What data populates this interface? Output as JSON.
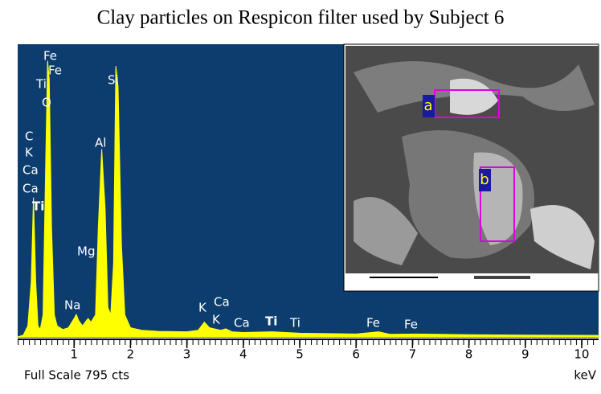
{
  "chart_data": {
    "type": "area",
    "title": "Clay particles on Respicon filter used by Subject 6",
    "x_label": "keV",
    "full_scale_label": "Full Scale 795 cts",
    "color": "#ffff00",
    "background": "#0c3d6e",
    "xlim": [
      0,
      10.3
    ],
    "ylim": [
      0,
      795
    ],
    "xticks": [
      1,
      2,
      3,
      4,
      5,
      6,
      7,
      8,
      9,
      10
    ],
    "x": [
      0.0,
      0.1,
      0.18,
      0.24,
      0.28,
      0.32,
      0.36,
      0.4,
      0.45,
      0.5,
      0.53,
      0.56,
      0.6,
      0.65,
      0.7,
      0.8,
      0.9,
      1.0,
      1.04,
      1.08,
      1.15,
      1.22,
      1.25,
      1.3,
      1.38,
      1.43,
      1.49,
      1.55,
      1.6,
      1.65,
      1.7,
      1.74,
      1.78,
      1.84,
      1.9,
      2.0,
      2.2,
      2.5,
      3.0,
      3.2,
      3.31,
      3.4,
      3.6,
      3.69,
      3.8,
      4.0,
      4.51,
      5.0,
      6.0,
      6.4,
      6.6,
      7.06,
      8.0,
      9.0,
      10.3
    ],
    "values": [
      0,
      5,
      30,
      150,
      379,
      150,
      30,
      20,
      60,
      500,
      750,
      700,
      300,
      60,
      30,
      20,
      25,
      50,
      61,
      45,
      30,
      45,
      50,
      40,
      60,
      300,
      510,
      350,
      80,
      60,
      200,
      736,
      680,
      250,
      60,
      25,
      18,
      15,
      14,
      18,
      40,
      25,
      18,
      22,
      14,
      12,
      14,
      10,
      8,
      14,
      7,
      8,
      6,
      5,
      4
    ],
    "annotations": [
      "Fe",
      "Fe",
      "Ti",
      "O",
      "C",
      "K",
      "Ca",
      "Ca",
      "Ti",
      "Al",
      "Si",
      "Mg",
      "Na",
      "K",
      "Ca",
      "K",
      "Ca",
      "Ti",
      "Ti",
      "Fe",
      "Fe"
    ],
    "inset_labels": [
      "a",
      "b"
    ]
  }
}
